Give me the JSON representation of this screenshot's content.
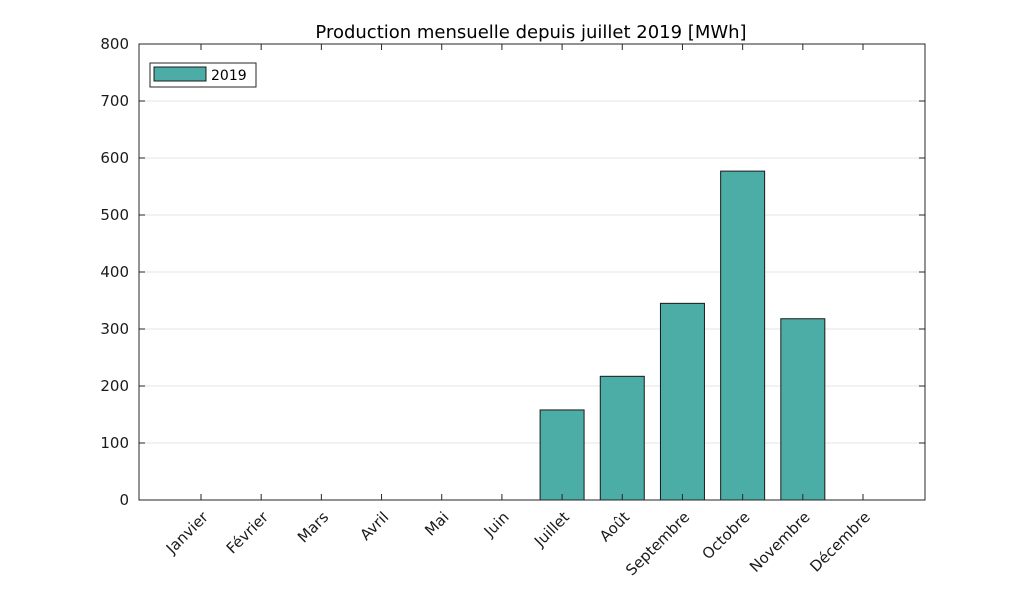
{
  "chart_data": {
    "type": "bar",
    "title": "Production mensuelle depuis juillet 2019 [MWh]",
    "xlabel": "",
    "ylabel": "",
    "categories": [
      "Janvier",
      "Février",
      "Mars",
      "Avril",
      "Mai",
      "Juin",
      "Juillet",
      "Août",
      "Septembre",
      "Octobre",
      "Novembre",
      "Décembre"
    ],
    "series": [
      {
        "name": "2019",
        "color": "#4bada5",
        "values": [
          0,
          0,
          0,
          0,
          0,
          0,
          158,
          217,
          345,
          577,
          318,
          0
        ]
      }
    ],
    "ylim": [
      0,
      800
    ],
    "yticks": [
      0,
      100,
      200,
      300,
      400,
      500,
      600,
      700,
      800
    ],
    "grid": "horizontal",
    "legend_position": "top-left"
  }
}
